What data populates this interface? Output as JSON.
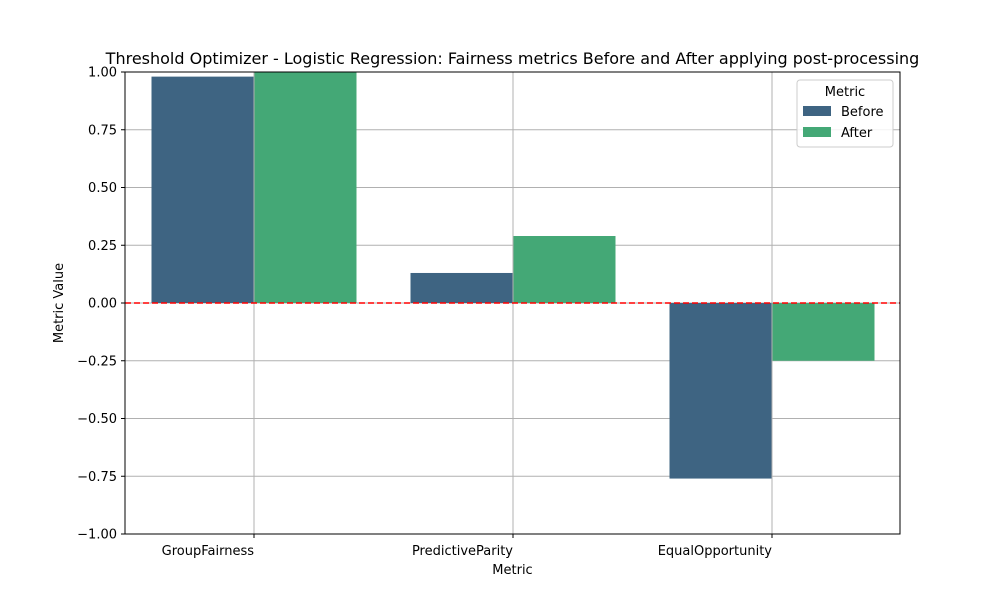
{
  "chart_data": {
    "type": "bar",
    "title": "Threshold Optimizer - Logistic Regression: Fairness metrics Before and After applying post-processing",
    "xlabel": "Metric",
    "ylabel": "Metric Value",
    "ylim": [
      -1.0,
      1.0
    ],
    "yticks": [
      -1.0,
      -0.75,
      -0.5,
      -0.25,
      0.0,
      0.25,
      0.5,
      0.75,
      1.0
    ],
    "ytick_labels": [
      "−1.00",
      "−0.75",
      "−0.50",
      "−0.25",
      "0.00",
      "0.25",
      "0.50",
      "0.75",
      "1.00"
    ],
    "categories": [
      "GroupFairness",
      "PredictiveParity",
      "EqualOpportunity"
    ],
    "series": [
      {
        "name": "Before",
        "color": "#3e6482",
        "values": [
          0.98,
          0.13,
          -0.76
        ]
      },
      {
        "name": "After",
        "color": "#44a876",
        "values": [
          1.0,
          0.29,
          -0.25
        ]
      }
    ],
    "reference_line": {
      "y": 0.0,
      "color": "#ff0000",
      "style": "dashed"
    },
    "grid": true,
    "legend": {
      "title": "Metric",
      "placement": "top-right"
    }
  }
}
